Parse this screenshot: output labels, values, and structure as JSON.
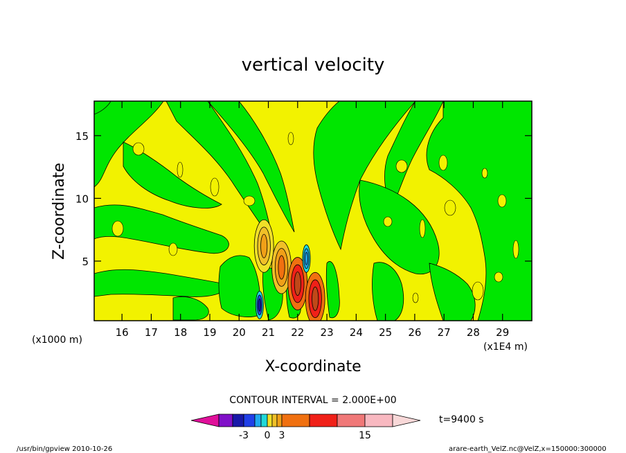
{
  "chart_data": {
    "type": "heatmap",
    "title": "vertical velocity",
    "xlabel": "X-coordinate",
    "ylabel": "Z-coordinate",
    "x_unit_left": "(x1000 m)",
    "x_unit_right": "(x1E4 m)",
    "xlim": [
      15.05,
      30.0
    ],
    "ylim": [
      0.25,
      17.75
    ],
    "x_ticks": [
      16,
      17,
      18,
      19,
      20,
      21,
      22,
      23,
      24,
      25,
      26,
      27,
      28,
      29
    ],
    "x_tick_labels": [
      "16",
      "17",
      "18",
      "19",
      "20",
      "21",
      "22",
      "23",
      "24",
      "25",
      "26",
      "27",
      "28",
      "29"
    ],
    "y_ticks": [
      5,
      10,
      15
    ],
    "y_tick_labels": [
      "5",
      "10",
      "15"
    ],
    "contour_interval_text": "CONTOUR INTERVAL = 2.000E+00",
    "time_text": "t=9400 s",
    "colorbar": {
      "colors": [
        "#e0109a",
        "#8010c8",
        "#1818a8",
        "#2040e8",
        "#20a8f0",
        "#20d8d8",
        "#f0e028",
        "#f0c028",
        "#f0a018",
        "#f07010",
        "#f02018",
        "#f07878",
        "#f8b8c0",
        "#f8d8d8"
      ],
      "labels": [
        "-3",
        "0",
        "3",
        "15"
      ],
      "label_values": [
        -3,
        0,
        3,
        15
      ]
    },
    "features": [
      {
        "x": 20.85,
        "z": 6.2,
        "value": 7,
        "kind": "updraft"
      },
      {
        "x": 21.45,
        "z": 4.5,
        "value": 9,
        "kind": "updraft"
      },
      {
        "x": 22.0,
        "z": 3.2,
        "value": 11,
        "kind": "updraft"
      },
      {
        "x": 22.6,
        "z": 2.0,
        "value": 11,
        "kind": "updraft"
      },
      {
        "x": 20.7,
        "z": 1.5,
        "value": -5,
        "kind": "downdraft"
      },
      {
        "x": 22.3,
        "z": 5.2,
        "value": -3,
        "kind": "downdraft"
      }
    ]
  },
  "footer": {
    "left": "/usr/bin/gpview  2010-10-26",
    "right": "arare-earth_VelZ.nc@VelZ,x=150000:300000"
  },
  "colors": {
    "field_positive": "#f2f200",
    "field_negative": "#00e600",
    "contour": "#000000"
  }
}
